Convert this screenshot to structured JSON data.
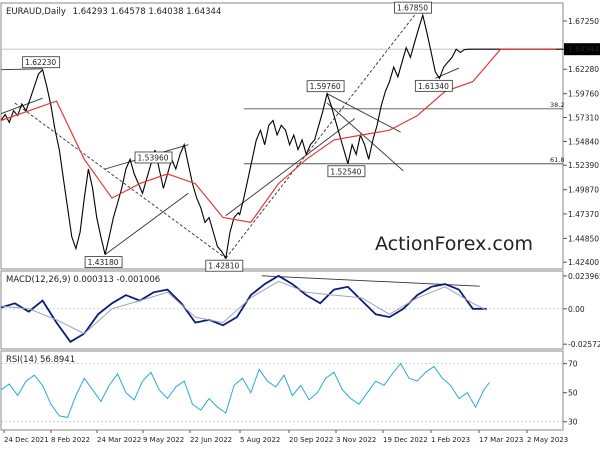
{
  "chart_data": {
    "type": "line",
    "symbol_label": "EURAUD,Daily",
    "ohlc_readout": "1.64293 1.64578 1.64038 1.64344",
    "watermark": "ActionForex.com",
    "colors": {
      "price": "#000000",
      "ma": "#e53935",
      "macd": "#0d1b7a",
      "signal": "#9aa3b8",
      "rsi": "#29a9e0",
      "level": "#555555",
      "trend": "#333333"
    },
    "x_dates": [
      "24 Dec 2021",
      "8 Feb 2022",
      "24 Mar 2022",
      "9 May 2022",
      "22 Jun 2022",
      "5 Aug 2022",
      "20 Sep 2022",
      "3 Nov 2022",
      "19 Dec 2022",
      "1 Feb 2023",
      "17 Mar 2023",
      "2 May 2023"
    ],
    "price_panel": {
      "ylim": [
        1.418,
        1.69
      ],
      "ticks": [
        "1.67250",
        "1.64344",
        "1.62280",
        "1.59760",
        "1.57310",
        "1.54840",
        "1.52390",
        "1.49870",
        "1.47370",
        "1.44850",
        "1.42400"
      ],
      "tick_values": [
        1.6725,
        1.64344,
        1.6228,
        1.5976,
        1.5731,
        1.5484,
        1.5239,
        1.4987,
        1.4737,
        1.4485,
        1.424
      ],
      "current_price": "1.64344",
      "series": [
        {
          "role": "close",
          "x": [
            0,
            3,
            6,
            9,
            12,
            15,
            18,
            21,
            24,
            27,
            30,
            33,
            36,
            39,
            42,
            45,
            48,
            51,
            54,
            57,
            60,
            63,
            66,
            69,
            72,
            75,
            78,
            81,
            84,
            87,
            90,
            93,
            96,
            99,
            102,
            105,
            108,
            111,
            114,
            117,
            120,
            123,
            126,
            129,
            132,
            135,
            138,
            141,
            144,
            147,
            150,
            153,
            156,
            159,
            162,
            165,
            168,
            171,
            172,
            175,
            178,
            181,
            184,
            187,
            190,
            193,
            196,
            199,
            202,
            205,
            208,
            211,
            214,
            217,
            220,
            223,
            226,
            229,
            232,
            235,
            238,
            241,
            244,
            247,
            250,
            253,
            256,
            259,
            262,
            265,
            268,
            271,
            274,
            277,
            280,
            283,
            286,
            289,
            292,
            295,
            298,
            301,
            304,
            307,
            310,
            313,
            316,
            319,
            322,
            325,
            328,
            331,
            334,
            337,
            340,
            343,
            346,
            349,
            352,
            355,
            358,
            361,
            364,
            367,
            370,
            373,
            376,
            379,
            382,
            385,
            388,
            391,
            394,
            397,
            400,
            403,
            405
          ],
          "y": [
            1.57,
            1.576,
            1.568,
            1.58,
            1.575,
            1.587,
            1.58,
            1.592,
            1.605,
            1.618,
            1.6223,
            1.605,
            1.585,
            1.56,
            1.54,
            1.51,
            1.48,
            1.45,
            1.438,
            1.455,
            1.49,
            1.52,
            1.5,
            1.47,
            1.45,
            1.4318,
            1.45,
            1.47,
            1.485,
            1.5,
            1.52,
            1.53,
            1.515,
            1.505,
            1.495,
            1.51,
            1.525,
            1.5396,
            1.52,
            1.5,
            1.515,
            1.53,
            1.52,
            1.535,
            1.545,
            1.525,
            1.505,
            1.49,
            1.48,
            1.465,
            1.47,
            1.455,
            1.44,
            1.435,
            1.4281,
            1.455,
            1.47,
            1.475,
            1.473,
            1.49,
            1.51,
            1.53,
            1.55,
            1.56,
            1.545,
            1.565,
            1.57,
            1.555,
            1.565,
            1.56,
            1.545,
            1.555,
            1.54,
            1.55,
            1.535,
            1.545,
            1.55,
            1.565,
            1.58,
            1.5976,
            1.585,
            1.57,
            1.555,
            1.54,
            1.5254,
            1.545,
            1.535,
            1.555,
            1.545,
            1.53,
            1.55,
            1.565,
            1.585,
            1.6,
            1.61,
            1.625,
            1.615,
            1.63,
            1.645,
            1.635,
            1.65,
            1.665,
            1.6785,
            1.66,
            1.64,
            1.62,
            1.6134,
            1.625,
            1.63,
            1.635,
            1.6434,
            1.64,
            1.643,
            1.6434,
            1.6434,
            1.6434,
            1.6434,
            1.6434,
            1.6434,
            1.6434,
            1.6434,
            1.6434,
            1.6434,
            1.6434,
            1.6434,
            1.6434,
            1.6434,
            1.6434,
            1.6434,
            1.6434,
            1.6434,
            1.6434,
            1.6434,
            1.6434,
            1.6434,
            1.6434,
            1.6434
          ]
        },
        {
          "role": "ma",
          "x": [
            0,
            20,
            40,
            60,
            80,
            100,
            120,
            140,
            160,
            180,
            200,
            220,
            240,
            260,
            280,
            300,
            320,
            340,
            360,
            380,
            400
          ],
          "y": [
            1.57,
            1.58,
            1.59,
            1.53,
            1.49,
            1.505,
            1.515,
            1.505,
            1.47,
            1.465,
            1.505,
            1.53,
            1.55,
            1.555,
            1.56,
            1.575,
            1.6,
            1.61,
            1.6434,
            1.6434,
            1.6434
          ]
        }
      ],
      "annotations": [
        {
          "label": "1.62230",
          "x": 30,
          "y": 1.6223
        },
        {
          "label": "1.43180",
          "x": 75,
          "y": 1.4318
        },
        {
          "label": "1.53960",
          "x": 111,
          "y": 1.5396
        },
        {
          "label": "1.42810",
          "x": 162,
          "y": 1.4281
        },
        {
          "label": "1.59760",
          "x": 235,
          "y": 1.5976
        },
        {
          "label": "1.52540",
          "x": 250,
          "y": 1.5254
        },
        {
          "label": "1.67850",
          "x": 298,
          "y": 1.6785
        },
        {
          "label": "1.61340",
          "x": 313,
          "y": 1.6134
        }
      ],
      "fib_levels": [
        {
          "label": "38.2",
          "y": 1.582
        },
        {
          "label": "61.8",
          "y": 1.5254
        }
      ]
    },
    "macd_panel": {
      "title": "MACD(12,26,9) 0.000313 -0.001006",
      "ylim": [
        -0.0285,
        0.0268
      ],
      "ticks": [
        "0.023965",
        "0.00",
        "-0.025726"
      ],
      "tick_values": [
        0.023965,
        0.0,
        -0.025726
      ],
      "series": [
        {
          "role": "macd",
          "x": [
            0,
            10,
            20,
            30,
            40,
            50,
            60,
            70,
            80,
            90,
            100,
            110,
            120,
            130,
            140,
            150,
            160,
            170,
            180,
            190,
            200,
            210,
            220,
            230,
            240,
            250,
            260,
            270,
            280,
            290,
            300,
            310,
            320,
            330,
            340,
            350
          ],
          "y": [
            0.001,
            0.004,
            -0.002,
            0.006,
            -0.01,
            -0.024,
            -0.018,
            -0.004,
            0.004,
            0.01,
            0.006,
            0.012,
            0.014,
            0.004,
            -0.01,
            -0.008,
            -0.012,
            -0.006,
            0.01,
            0.018,
            0.024,
            0.018,
            0.01,
            0.004,
            0.014,
            0.016,
            0.006,
            -0.004,
            -0.006,
            0.0,
            0.01,
            0.016,
            0.018,
            0.014,
            0.0,
            0.0
          ]
        },
        {
          "role": "signal",
          "x": [
            0,
            20,
            40,
            60,
            80,
            100,
            120,
            140,
            160,
            180,
            200,
            220,
            240,
            260,
            280,
            300,
            320,
            340,
            350
          ],
          "y": [
            0.002,
            0.0,
            -0.008,
            -0.018,
            0.0,
            0.006,
            0.012,
            -0.006,
            -0.01,
            0.008,
            0.02,
            0.012,
            0.01,
            0.008,
            -0.004,
            0.008,
            0.016,
            0.004,
            -0.001
          ]
        }
      ]
    },
    "rsi_panel": {
      "title": "RSI(14) 56.8941",
      "ylim": [
        25,
        78
      ],
      "ticks": [
        "70",
        "50",
        "30"
      ],
      "tick_values": [
        70,
        50,
        30
      ],
      "series": [
        {
          "role": "rsi",
          "x": [
            0,
            6,
            12,
            18,
            24,
            30,
            36,
            42,
            48,
            54,
            60,
            66,
            72,
            78,
            84,
            90,
            96,
            102,
            108,
            114,
            120,
            126,
            132,
            138,
            144,
            150,
            156,
            162,
            168,
            174,
            180,
            186,
            192,
            198,
            204,
            210,
            216,
            222,
            228,
            234,
            240,
            246,
            252,
            258,
            264,
            270,
            276,
            282,
            288,
            294,
            300,
            306,
            312,
            318,
            324,
            330,
            336,
            342,
            348,
            352
          ],
          "y": [
            52,
            56,
            48,
            58,
            62,
            55,
            42,
            34,
            33,
            48,
            60,
            52,
            44,
            55,
            63,
            50,
            45,
            58,
            64,
            52,
            46,
            54,
            58,
            42,
            38,
            46,
            40,
            36,
            55,
            60,
            50,
            66,
            58,
            54,
            62,
            48,
            55,
            45,
            50,
            60,
            64,
            52,
            46,
            42,
            50,
            58,
            55,
            63,
            70,
            60,
            58,
            64,
            68,
            60,
            55,
            46,
            50,
            40,
            52,
            57
          ]
        }
      ]
    }
  }
}
